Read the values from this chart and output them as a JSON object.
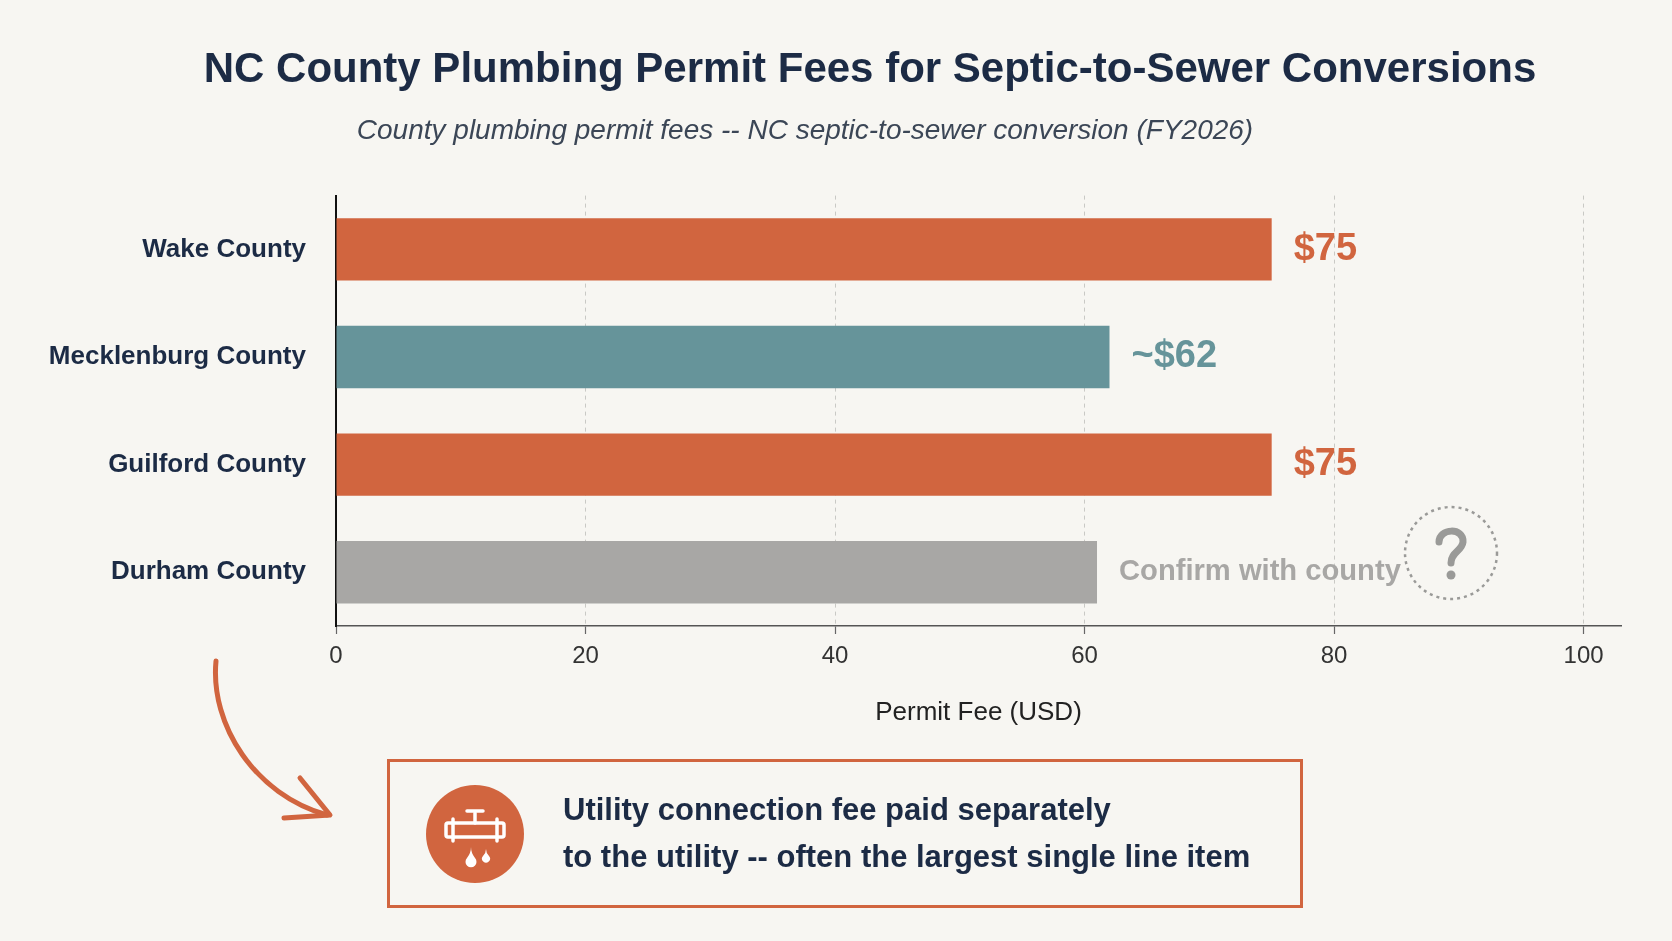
{
  "chart_data": {
    "type": "bar",
    "orientation": "horizontal",
    "title": "NC County Plumbing Permit Fees for Septic-to-Sewer Conversions",
    "subtitle": "County plumbing permit fees -- NC septic-to-sewer conversion (FY2026)",
    "xlabel": "Permit Fee (USD)",
    "categories": [
      "Wake County",
      "Mecklenburg County",
      "Guilford County",
      "Durham County"
    ],
    "values": [
      75,
      62,
      75,
      61
    ],
    "colors": [
      "#d1653f",
      "#66949a",
      "#d1653f",
      "#a8a7a5"
    ],
    "value_labels": [
      "$75",
      "~$62",
      "$75",
      "Confirm with county"
    ],
    "xlim": [
      0,
      103
    ],
    "xticks": [
      0,
      20,
      40,
      60,
      80,
      100
    ],
    "grid": "x",
    "legend": false,
    "annotations": [
      "Utility connection fee paid separately\nto the utility -- often the largest single line item"
    ]
  }
}
